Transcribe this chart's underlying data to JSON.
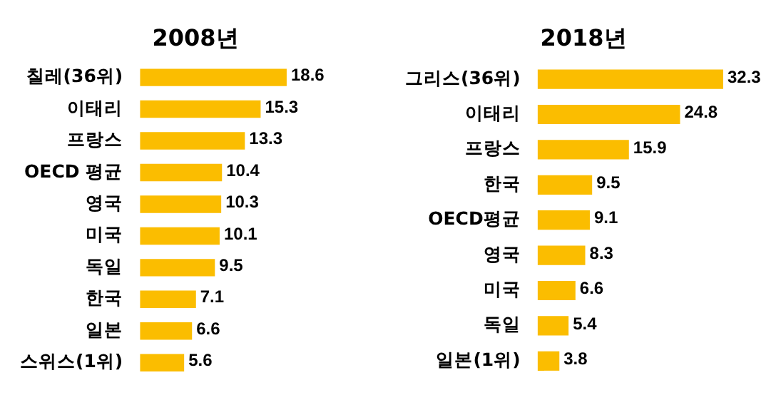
{
  "chart_data": [
    {
      "type": "bar",
      "orientation": "horizontal",
      "title": "2008년",
      "categories": [
        "칠레(36위)",
        "이태리",
        "프랑스",
        "OECD 평균",
        "영국",
        "미국",
        "독일",
        "한국",
        "일본",
        "스위스(1위)"
      ],
      "values": [
        18.6,
        15.3,
        13.3,
        10.4,
        10.3,
        10.1,
        9.5,
        7.1,
        6.6,
        5.6
      ],
      "color": "#fbbd00",
      "data_labels": true,
      "tick_labels": "y",
      "grid": false,
      "legend": false
    },
    {
      "type": "bar",
      "orientation": "horizontal",
      "title": "2018년",
      "categories": [
        "그리스(36위)",
        "이태리",
        "프랑스",
        "한국",
        "OECD평균",
        "영국",
        "미국",
        "독일",
        "일본(1위)"
      ],
      "values": [
        32.3,
        24.8,
        15.9,
        9.5,
        9.1,
        8.3,
        6.6,
        5.4,
        3.8
      ],
      "color": "#fbbd00",
      "data_labels": true,
      "tick_labels": "y",
      "grid": false,
      "legend": false
    }
  ]
}
